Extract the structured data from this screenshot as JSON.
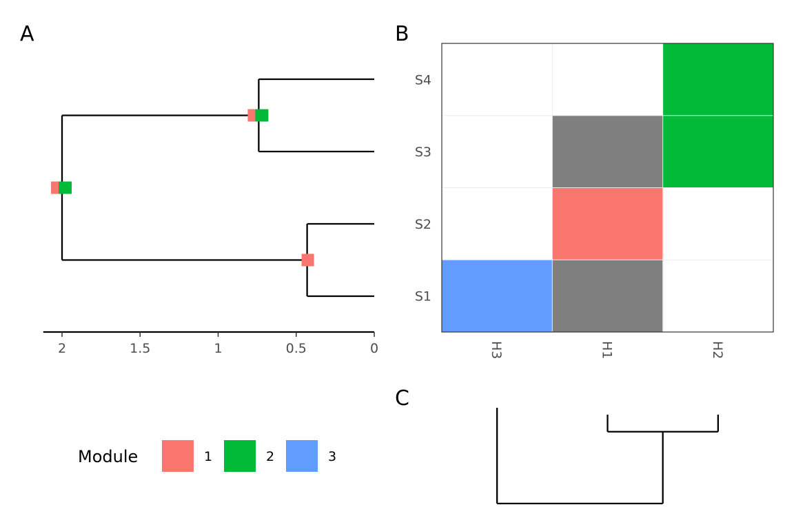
{
  "panels": {
    "a": "A",
    "b": "B",
    "c": "C"
  },
  "colors": {
    "1": "#F8766D",
    "2": "#00BA38",
    "3": "#619CFF",
    "gray": "#7F7F7F"
  },
  "chart_data": [
    {
      "panel": "A",
      "type": "dendrogram",
      "x_axis": {
        "reversed": true,
        "range": [
          2.12,
          0
        ],
        "ticks": [
          2,
          1.5,
          1,
          0.5,
          0
        ],
        "tick_labels": [
          "2",
          "1.5",
          "1",
          "0.5",
          "0"
        ]
      },
      "nodes": [
        {
          "id": "root",
          "height": 2,
          "children": [
            "n1",
            "n2"
          ],
          "modules": [
            "1",
            "2"
          ]
        },
        {
          "id": "n1",
          "height": 0.74,
          "children": [
            "leaf1",
            "leaf2"
          ],
          "modules": [
            "1",
            "2"
          ]
        },
        {
          "id": "n2",
          "height": 0.43,
          "children": [
            "leaf3",
            "leaf4"
          ],
          "modules": [
            "1"
          ]
        }
      ],
      "leaves": [
        "leaf1",
        "leaf2",
        "leaf3",
        "leaf4"
      ]
    },
    {
      "panel": "B",
      "type": "heatmap",
      "x_categories": [
        "H3",
        "H1",
        "H2"
      ],
      "y_categories": [
        "S1",
        "S2",
        "S3",
        "S4"
      ],
      "cells": [
        {
          "x": "H3",
          "y": "S1",
          "module": "3"
        },
        {
          "x": "H1",
          "y": "S1",
          "module": "gray"
        },
        {
          "x": "H1",
          "y": "S2",
          "module": "1"
        },
        {
          "x": "H1",
          "y": "S3",
          "module": "gray"
        },
        {
          "x": "H2",
          "y": "S3",
          "module": "2"
        },
        {
          "x": "H2",
          "y": "S4",
          "module": "2"
        }
      ]
    },
    {
      "panel": "C",
      "type": "dendrogram",
      "leaves": [
        "H3",
        "H1",
        "H2"
      ],
      "merges": [
        {
          "left": "H1",
          "right": "H2",
          "height": 0.25
        },
        {
          "left": "H3",
          "right": "H1+H2",
          "height": 1
        }
      ]
    }
  ],
  "legend": {
    "title": "Module",
    "items": [
      {
        "key": "1",
        "label": "1"
      },
      {
        "key": "2",
        "label": "2"
      },
      {
        "key": "3",
        "label": "3"
      }
    ]
  }
}
